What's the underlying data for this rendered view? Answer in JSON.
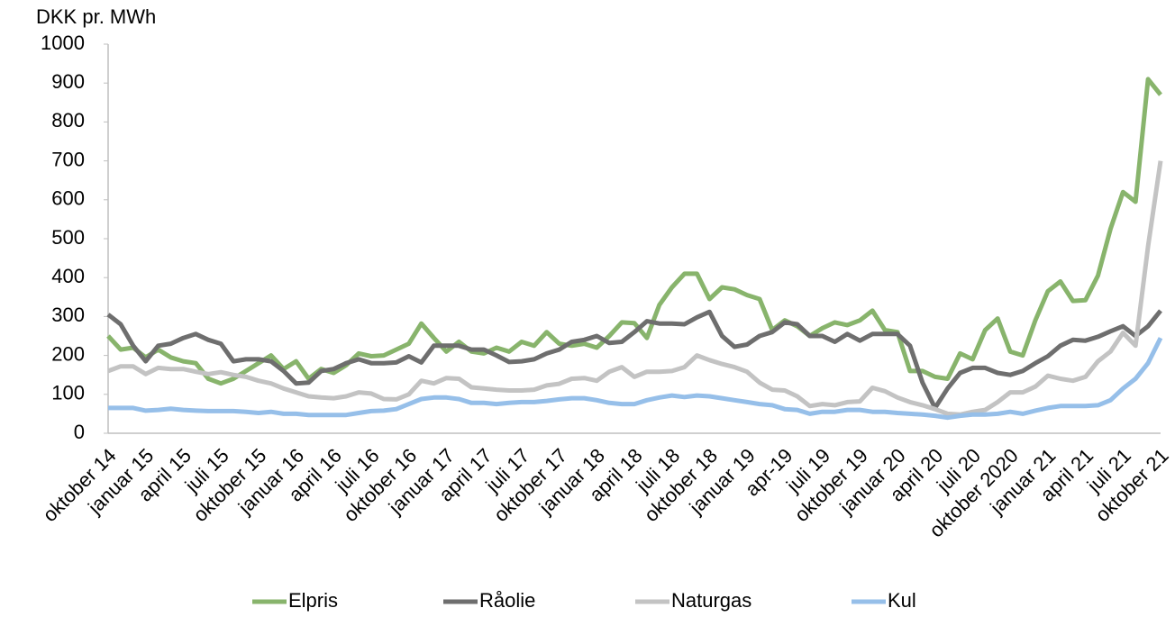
{
  "chart_data": {
    "type": "line",
    "y_label": "DKK pr. MWh",
    "categories": [
      "oktober 14",
      null,
      null,
      "januar 15",
      null,
      null,
      "april 15",
      null,
      null,
      "juli 15",
      null,
      null,
      "oktober 15",
      null,
      null,
      "januar 16",
      null,
      null,
      "april 16",
      null,
      null,
      "juli 16",
      null,
      null,
      "oktober 16",
      null,
      null,
      "januar 17",
      null,
      null,
      "april 17",
      null,
      null,
      "juli 17",
      null,
      null,
      "oktober 17",
      null,
      null,
      "januar 18",
      null,
      null,
      "april 18",
      null,
      null,
      "juli 18",
      null,
      null,
      "oktober 18",
      null,
      null,
      "januar 19",
      null,
      null,
      "apr-19",
      null,
      null,
      "juli 19",
      null,
      null,
      "oktober 19",
      null,
      null,
      "januar 20",
      null,
      null,
      "april 20",
      null,
      null,
      "juli 20",
      null,
      null,
      "oktober 2020",
      null,
      null,
      "januar 21",
      null,
      null,
      "april 21",
      null,
      null,
      "juli 21",
      null,
      null,
      "oktober 21"
    ],
    "series": [
      {
        "name": "Elpris",
        "color": "#88b46c",
        "values": [
          250,
          215,
          220,
          195,
          215,
          195,
          185,
          180,
          140,
          128,
          140,
          160,
          180,
          200,
          165,
          185,
          140,
          165,
          155,
          175,
          205,
          198,
          200,
          215,
          230,
          282,
          245,
          210,
          235,
          210,
          205,
          220,
          210,
          235,
          225,
          260,
          230,
          225,
          230,
          220,
          250,
          285,
          283,
          245,
          330,
          375,
          410,
          410,
          345,
          375,
          370,
          355,
          345,
          265,
          290,
          275,
          250,
          270,
          285,
          278,
          290,
          315,
          265,
          260,
          160,
          160,
          145,
          140,
          205,
          190,
          265,
          295,
          210,
          200,
          290,
          365,
          390,
          340,
          342,
          405,
          525,
          620,
          595,
          910,
          870
        ]
      },
      {
        "name": "Råolie",
        "color": "#6e6e6e",
        "values": [
          305,
          280,
          225,
          185,
          225,
          230,
          245,
          255,
          240,
          230,
          185,
          190,
          190,
          185,
          160,
          128,
          130,
          160,
          165,
          180,
          190,
          180,
          180,
          182,
          198,
          182,
          225,
          225,
          225,
          215,
          215,
          200,
          183,
          185,
          190,
          205,
          215,
          235,
          240,
          250,
          232,
          235,
          260,
          288,
          282,
          282,
          280,
          298,
          312,
          250,
          222,
          228,
          250,
          260,
          285,
          280,
          250,
          250,
          235,
          255,
          238,
          255,
          255,
          255,
          225,
          130,
          65,
          115,
          155,
          168,
          168,
          155,
          150,
          160,
          180,
          198,
          225,
          240,
          238,
          248,
          262,
          275,
          250,
          275,
          315
        ]
      },
      {
        "name": "Naturgas",
        "color": "#c3c3c3",
        "values": [
          160,
          172,
          172,
          152,
          168,
          165,
          165,
          158,
          152,
          157,
          150,
          145,
          135,
          128,
          115,
          105,
          95,
          92,
          90,
          95,
          105,
          102,
          88,
          87,
          100,
          135,
          128,
          142,
          140,
          118,
          115,
          112,
          110,
          110,
          112,
          123,
          127,
          140,
          142,
          135,
          158,
          170,
          145,
          158,
          158,
          160,
          170,
          200,
          188,
          178,
          170,
          158,
          130,
          112,
          110,
          95,
          70,
          75,
          72,
          80,
          82,
          117,
          108,
          92,
          80,
          72,
          62,
          50,
          48,
          55,
          60,
          80,
          105,
          105,
          120,
          148,
          140,
          135,
          145,
          185,
          210,
          258,
          225,
          480,
          700
        ]
      },
      {
        "name": "Kul",
        "color": "#96bfe9",
        "values": [
          65,
          65,
          65,
          58,
          60,
          63,
          60,
          58,
          57,
          57,
          57,
          55,
          52,
          55,
          50,
          50,
          47,
          47,
          47,
          47,
          52,
          57,
          58,
          62,
          75,
          88,
          92,
          92,
          88,
          78,
          78,
          75,
          78,
          80,
          80,
          83,
          87,
          90,
          90,
          85,
          78,
          75,
          75,
          85,
          92,
          97,
          93,
          97,
          95,
          90,
          85,
          80,
          75,
          72,
          62,
          60,
          50,
          55,
          55,
          60,
          60,
          55,
          55,
          52,
          50,
          48,
          45,
          40,
          45,
          48,
          48,
          50,
          55,
          50,
          58,
          65,
          70,
          70,
          70,
          72,
          85,
          115,
          140,
          180,
          245
        ]
      }
    ],
    "ylim": [
      0,
      1000
    ],
    "yticks": [
      0,
      100,
      200,
      300,
      400,
      500,
      600,
      700,
      800,
      900,
      1000
    ],
    "grid": false
  }
}
